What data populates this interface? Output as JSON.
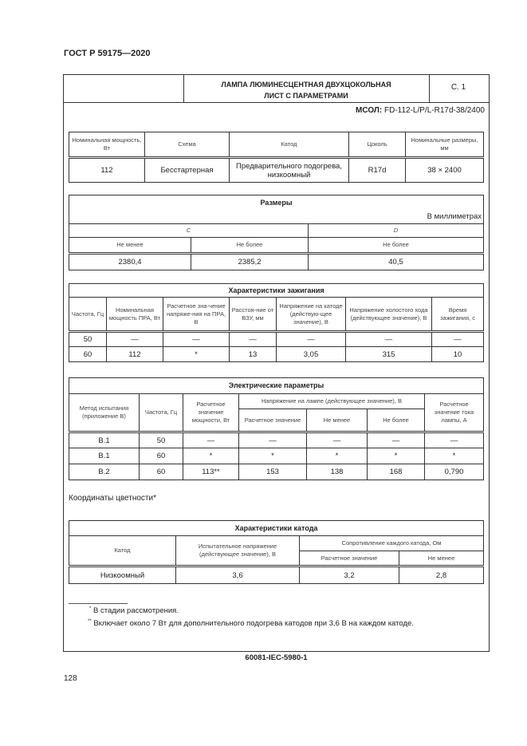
{
  "header": "ГОСТ Р 59175—2020",
  "title": {
    "line1": "ЛАМПА ЛЮМИНЕСЦЕНТНАЯ ДВУХЦОКОЛЬНАЯ",
    "line2": "ЛИСТ С ПАРАМЕТРАМИ",
    "sheet": "С. 1"
  },
  "mcol": {
    "label": "МСОЛ:",
    "value": "FD-112-L/P/L-R17d-38/2400"
  },
  "main_table": {
    "headers": [
      "Номинальная мощность, Вт",
      "Схема",
      "Катод",
      "Цоколь",
      "Номинальные размеры, мм"
    ],
    "row": [
      "112",
      "Бесстартерная",
      "Предварительного подогрева, низкоомный",
      "R17d",
      "38 × 2400"
    ]
  },
  "sizes": {
    "title": "Размеры",
    "unit": "В миллиметрах",
    "c": "C",
    "d": "D",
    "sub": [
      "Не менее",
      "Не более",
      "Не более"
    ],
    "row": [
      "2380,4",
      "2385,2",
      "40,5"
    ]
  },
  "ignition": {
    "title": "Характеристики зажигания",
    "headers": [
      "Частота, Гц",
      "Номинальная мощность ПРА, Вт",
      "Расчетное зна-чение напряже-ния на ПРА, В",
      "Расстоя-ние от ВЗУ, мм",
      "Напряжение на катоде (действую-щее значение), В",
      "Напряжение холостого хода (действующее значение), В",
      "Время зажигания, с"
    ],
    "rows": [
      [
        "50",
        "—",
        "—",
        "—",
        "—",
        "—",
        "—"
      ],
      [
        "60",
        "112",
        "*",
        "13",
        "3,05",
        "315",
        "10"
      ]
    ]
  },
  "electrical": {
    "title": "Электрические параметры",
    "headers": [
      "Метод испытания (приложение В)",
      "Частота, Гц",
      "Расчетное значение мощности, Вт",
      "Напряжение на лампе (действующее значение), В",
      "Расчетное значение тока лампы, А"
    ],
    "subheaders": [
      "Расчетное значение",
      "Не менее",
      "Не более"
    ],
    "rows": [
      [
        "B.1",
        "50",
        "—",
        "—",
        "—",
        "—",
        "—"
      ],
      [
        "B.1",
        "60",
        "*",
        "*",
        "*",
        "*",
        "*"
      ],
      [
        "B.2",
        "60",
        "113**",
        "153",
        "138",
        "168",
        "0,790"
      ]
    ]
  },
  "chromaticity": "Координаты цветности*",
  "cathode": {
    "title": "Характеристики катода",
    "headers": [
      "Катод",
      "Испытательное напряжение (действующее значение), В",
      "Сопротивление каждого катода, Ом"
    ],
    "subheaders": [
      "Расчетное значение",
      "Не менее"
    ],
    "row": [
      "Низкоомный",
      "3,6",
      "3,2",
      "2,8"
    ]
  },
  "footnotes": [
    {
      "mark": "*",
      "text": "В стадии рассмотрения."
    },
    {
      "mark": "**",
      "text": "Включает около 7 Вт для дополнительного подогрева катодов при 3,6 В на каждом катоде."
    }
  ],
  "footer_code": "60081-IEC-5980-1",
  "page_number": "128"
}
